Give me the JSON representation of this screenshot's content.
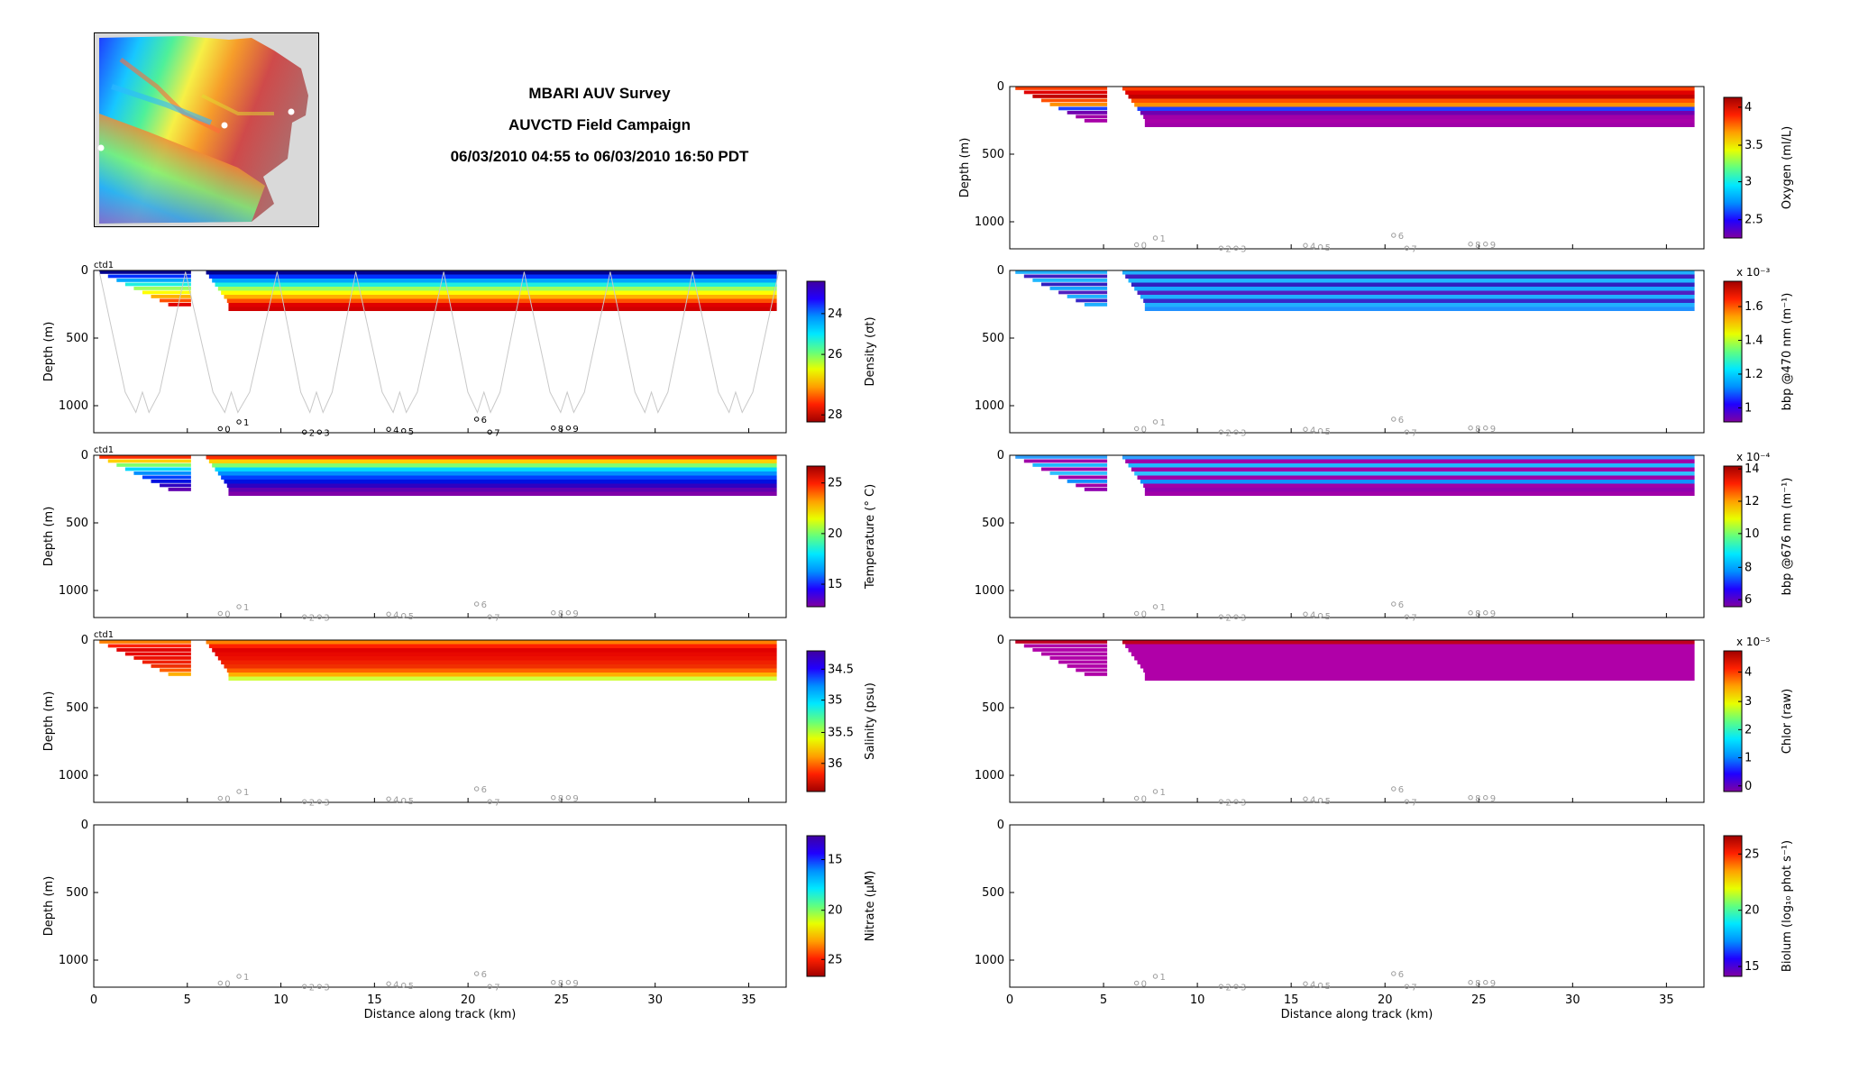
{
  "header": {
    "title_lines": [
      "MBARI AUV Survey",
      "AUVCTD Field Campaign",
      "06/03/2010 04:55 to 06/03/2010 16:50 PDT"
    ]
  },
  "colors": {
    "axis": "#000000",
    "track": "#c8c8c8",
    "station_dark": "#000000",
    "station_light": "#9a9a9a",
    "white": "#ffffff"
  },
  "chart_data": [
    {
      "id": "density",
      "type": "heatmap",
      "column": "left",
      "row": 0,
      "corner_label": "ctd1",
      "ylabel": "Depth (m)",
      "xlabel": "",
      "xlim": [
        0,
        37
      ],
      "ylim": [
        1200,
        0
      ],
      "xticks": [
        0,
        5,
        10,
        15,
        20,
        25,
        30,
        35
      ],
      "yticks": [
        0,
        500,
        1000
      ],
      "colorbar": {
        "label": "Density (σt)",
        "ticks": [
          "24",
          "26",
          "28"
        ],
        "tick_pos": [
          0.23,
          0.52,
          0.95
        ],
        "colormap": "jet_r",
        "exponent": ""
      },
      "field": {
        "mode": "bands",
        "colors": [
          "#000090",
          "#0030ff",
          "#00a8ff",
          "#20f0e0",
          "#a0ff60",
          "#ffff00",
          "#ffb000",
          "#ff5000",
          "#e00000",
          "#d00000"
        ]
      },
      "track": true,
      "station_style": "dark"
    },
    {
      "id": "temperature",
      "type": "heatmap",
      "column": "left",
      "row": 1,
      "corner_label": "ctd1",
      "ylabel": "Depth (m)",
      "xlabel": "",
      "xlim": [
        0,
        37
      ],
      "ylim": [
        1200,
        0
      ],
      "xticks": [
        0,
        5,
        10,
        15,
        20,
        25,
        30,
        35
      ],
      "yticks": [
        0,
        500,
        1000
      ],
      "colorbar": {
        "label": "Temperature (° C)",
        "ticks": [
          "25",
          "20",
          "15"
        ],
        "tick_pos": [
          0.12,
          0.48,
          0.84
        ],
        "colormap": "jet",
        "exponent": ""
      },
      "field": {
        "mode": "bands",
        "colors": [
          "#ff3000",
          "#ffd000",
          "#80ff70",
          "#00d8ff",
          "#0090ff",
          "#0040ff",
          "#0010e0",
          "#3000c0",
          "#6000b0",
          "#8000a8"
        ]
      },
      "track": false,
      "station_style": "light"
    },
    {
      "id": "salinity",
      "type": "heatmap",
      "column": "left",
      "row": 2,
      "corner_label": "ctd1",
      "ylabel": "Depth (m)",
      "xlabel": "",
      "xlim": [
        0,
        37
      ],
      "ylim": [
        1200,
        0
      ],
      "xticks": [
        0,
        5,
        10,
        15,
        20,
        25,
        30,
        35
      ],
      "yticks": [
        0,
        500,
        1000
      ],
      "colorbar": {
        "label": "Salinity (psu)",
        "ticks": [
          "34.5",
          "35",
          "35.5",
          "36"
        ],
        "tick_pos": [
          0.13,
          0.35,
          0.58,
          0.8
        ],
        "colormap": "jet_r",
        "exponent": ""
      },
      "field": {
        "mode": "bands",
        "colors": [
          "#ff8000",
          "#ff2000",
          "#e00000",
          "#e80800",
          "#ec1000",
          "#f02000",
          "#f03000",
          "#ff6000",
          "#ffb000",
          "#d0ff40"
        ]
      },
      "track": false,
      "station_style": "light"
    },
    {
      "id": "nitrate",
      "type": "heatmap",
      "column": "left",
      "row": 3,
      "corner_label": "",
      "ylabel": "Depth (m)",
      "xlabel": "Distance along track (km)",
      "xlim": [
        0,
        37
      ],
      "ylim": [
        1200,
        0
      ],
      "xticks": [
        0,
        5,
        10,
        15,
        20,
        25,
        30,
        35
      ],
      "yticks": [
        0,
        500,
        1000
      ],
      "colorbar": {
        "label": "Nitrate (μM)",
        "ticks": [
          "15",
          "20",
          "25"
        ],
        "tick_pos": [
          0.17,
          0.53,
          0.88
        ],
        "colormap": "jet_r",
        "exponent": ""
      },
      "field": {
        "mode": "empty",
        "colors": []
      },
      "track": false,
      "station_style": "light"
    },
    {
      "id": "oxygen",
      "type": "heatmap",
      "column": "right",
      "row": -1,
      "corner_label": "",
      "ylabel": "Depth (m)",
      "xlabel": "",
      "xlim": [
        0,
        37
      ],
      "ylim": [
        1200,
        0
      ],
      "xticks": [
        0,
        5,
        10,
        15,
        20,
        25,
        30,
        35
      ],
      "yticks": [
        0,
        500,
        1000
      ],
      "colorbar": {
        "label": "Oxygen (ml/L)",
        "ticks": [
          "4",
          "3.5",
          "3",
          "2.5"
        ],
        "tick_pos": [
          0.07,
          0.34,
          0.6,
          0.87
        ],
        "colormap": "jet",
        "exponent": ""
      },
      "field": {
        "mode": "bands",
        "colors": [
          "#ff4000",
          "#e00000",
          "#c00000",
          "#ff5000",
          "#ff9000",
          "#2040ff",
          "#7000b0",
          "#a000a8",
          "#a800a8",
          "#a000a8"
        ]
      },
      "track": false,
      "station_style": "light"
    },
    {
      "id": "bbp470",
      "type": "heatmap",
      "column": "right",
      "row": 0,
      "corner_label": "",
      "ylabel": "",
      "xlabel": "",
      "xlim": [
        0,
        37
      ],
      "ylim": [
        1200,
        0
      ],
      "xticks": [
        0,
        5,
        10,
        15,
        20,
        25,
        30,
        35
      ],
      "yticks": [
        0,
        500,
        1000
      ],
      "colorbar": {
        "label": "bbp @470 nm (m⁻¹)",
        "ticks": [
          "1.6",
          "1.4",
          "1.2",
          "1"
        ],
        "tick_pos": [
          0.18,
          0.42,
          0.66,
          0.9
        ],
        "colormap": "jet",
        "exponent": "x 10⁻³"
      },
      "field": {
        "mode": "bands",
        "colors": [
          "#20b0ff",
          "#4020c0",
          "#20b8ff",
          "#3020c0",
          "#18a8ff",
          "#5020c0",
          "#20b0ff",
          "#3828c8",
          "#20b0ff",
          "#2090ff"
        ]
      },
      "track": false,
      "station_style": "light"
    },
    {
      "id": "bbp676",
      "type": "heatmap",
      "column": "right",
      "row": 1,
      "corner_label": "",
      "ylabel": "",
      "xlabel": "",
      "xlim": [
        0,
        37
      ],
      "ylim": [
        1200,
        0
      ],
      "xticks": [
        0,
        5,
        10,
        15,
        20,
        25,
        30,
        35
      ],
      "yticks": [
        0,
        500,
        1000
      ],
      "colorbar": {
        "label": "bbp @676 nm (m⁻¹)",
        "ticks": [
          "14",
          "12",
          "10",
          "8",
          "6"
        ],
        "tick_pos": [
          0.02,
          0.25,
          0.48,
          0.72,
          0.95
        ],
        "colormap": "jet",
        "exponent": "x 10⁻⁴"
      },
      "field": {
        "mode": "bands",
        "colors": [
          "#30a0ff",
          "#a000a8",
          "#20b8ff",
          "#a000a8",
          "#30c0ff",
          "#a000a8",
          "#1090ff",
          "#a000a8",
          "#9000b0",
          "#a000a8"
        ]
      },
      "track": false,
      "station_style": "light"
    },
    {
      "id": "chlor",
      "type": "heatmap",
      "column": "right",
      "row": 2,
      "corner_label": "",
      "ylabel": "",
      "xlabel": "",
      "xlim": [
        0,
        37
      ],
      "ylim": [
        1200,
        0
      ],
      "xticks": [
        0,
        5,
        10,
        15,
        20,
        25,
        30,
        35
      ],
      "yticks": [
        0,
        500,
        1000
      ],
      "colorbar": {
        "label": "Chlor (raw)",
        "ticks": [
          "4",
          "3",
          "2",
          "1",
          "0"
        ],
        "tick_pos": [
          0.15,
          0.36,
          0.56,
          0.76,
          0.96
        ],
        "colormap": "jet",
        "exponent": "x 10⁻⁵"
      },
      "field": {
        "mode": "bands",
        "colors": [
          "#c00020",
          "#b000a8",
          "#b000a8",
          "#b000a8",
          "#b000a8",
          "#b000a8",
          "#b000a8",
          "#b000a8",
          "#b000a8",
          "#b000a8"
        ]
      },
      "track": false,
      "station_style": "light"
    },
    {
      "id": "biolum",
      "type": "heatmap",
      "column": "right",
      "row": 3,
      "corner_label": "",
      "ylabel": "",
      "xlabel": "Distance along track (km)",
      "xlim": [
        0,
        37
      ],
      "ylim": [
        1200,
        0
      ],
      "xticks": [
        0,
        5,
        10,
        15,
        20,
        25,
        30,
        35
      ],
      "yticks": [
        0,
        500,
        1000
      ],
      "colorbar": {
        "label": "Biolum (log₁₀ phot s⁻¹)",
        "ticks": [
          "25",
          "20",
          "15"
        ],
        "tick_pos": [
          0.13,
          0.53,
          0.93
        ],
        "colormap": "jet",
        "exponent": ""
      },
      "field": {
        "mode": "empty",
        "colors": []
      },
      "track": false,
      "station_style": "light"
    }
  ],
  "stations": [
    {
      "label": "0",
      "km": 7.0,
      "depth": 1170
    },
    {
      "label": "1",
      "km": 8.0,
      "depth": 1120
    },
    {
      "label": "2",
      "km": 11.5,
      "depth": 1195
    },
    {
      "label": "3",
      "km": 12.3,
      "depth": 1195
    },
    {
      "label": "4",
      "km": 16.0,
      "depth": 1175
    },
    {
      "label": "5",
      "km": 16.8,
      "depth": 1185
    },
    {
      "label": "6",
      "km": 20.7,
      "depth": 1100
    },
    {
      "label": "7",
      "km": 21.4,
      "depth": 1195
    },
    {
      "label": "8",
      "km": 24.8,
      "depth": 1165
    },
    {
      "label": "9",
      "km": 25.6,
      "depth": 1165
    }
  ]
}
